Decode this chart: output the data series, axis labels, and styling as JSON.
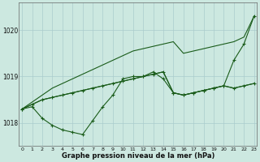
{
  "xlabel": "Graphe pression niveau de la mer (hPa)",
  "hours": [
    0,
    1,
    2,
    3,
    4,
    5,
    6,
    7,
    8,
    9,
    10,
    11,
    12,
    13,
    14,
    15,
    16,
    17,
    18,
    19,
    20,
    21,
    22,
    23
  ],
  "line_straight": [
    1018.3,
    1018.45,
    1018.6,
    1018.75,
    1018.85,
    1018.95,
    1019.05,
    1019.15,
    1019.25,
    1019.35,
    1019.45,
    1019.55,
    1019.6,
    1019.65,
    1019.7,
    1019.75,
    1019.5,
    1019.55,
    1019.6,
    1019.65,
    1019.7,
    1019.75,
    1019.85,
    1020.3
  ],
  "line_mid1": [
    1018.3,
    1018.4,
    1018.5,
    1018.55,
    1018.6,
    1018.65,
    1018.7,
    1018.75,
    1018.8,
    1018.85,
    1018.9,
    1018.95,
    1019.0,
    1019.05,
    1019.1,
    1018.65,
    1018.6,
    1018.65,
    1018.7,
    1018.75,
    1018.8,
    1018.75,
    1018.8,
    1018.85
  ],
  "line_dip_markers": [
    1018.3,
    1018.35,
    1018.1,
    1017.95,
    1017.85,
    1017.8,
    1017.75,
    1018.05,
    1018.35,
    1018.6,
    1018.95,
    1019.0,
    1019.0,
    1019.1,
    1018.95,
    1018.65,
    1018.6,
    1018.65,
    1018.7,
    1018.75,
    1018.8,
    1019.35,
    1019.7,
    1020.3
  ],
  "line_flat_markers": [
    1018.3,
    1018.4,
    1018.5,
    1018.55,
    1018.6,
    1018.65,
    1018.7,
    1018.75,
    1018.8,
    1018.85,
    1018.9,
    1018.95,
    1019.0,
    1019.05,
    1019.1,
    1018.65,
    1018.6,
    1018.65,
    1018.7,
    1018.75,
    1018.8,
    1018.75,
    1018.8,
    1018.85
  ],
  "bg_color": "#cce8e0",
  "grid_color": "#aacccc",
  "line_color": "#1a5c1a",
  "ylim": [
    1017.5,
    1020.6
  ],
  "yticks": [
    1018,
    1019,
    1020
  ],
  "xticks": [
    0,
    1,
    2,
    3,
    4,
    5,
    6,
    7,
    8,
    9,
    10,
    11,
    12,
    13,
    14,
    15,
    16,
    17,
    18,
    19,
    20,
    21,
    22,
    23
  ]
}
